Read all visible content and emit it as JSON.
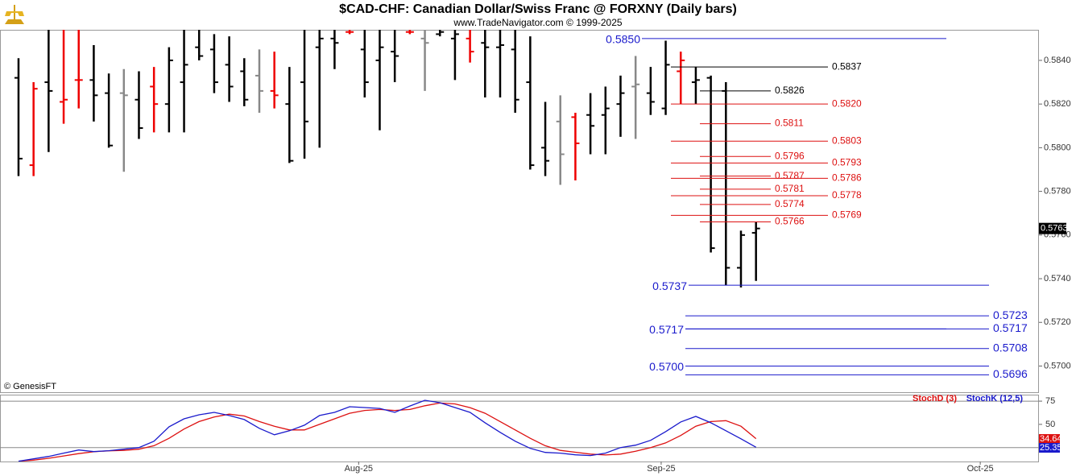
{
  "chart_data": [
    {
      "type": "ohlc",
      "title": "$CAD-CHF:  Canadian Dollar/Swiss Franc @ FORXNY  (Daily bars)",
      "subtitle": "www.TradeNavigator.com © 1999-2025",
      "credit": "© GenesisFT",
      "categories": [
        null,
        null,
        null,
        null,
        null,
        null,
        null,
        null,
        null,
        null,
        null,
        null,
        null,
        null,
        null,
        null,
        null,
        null,
        null,
        null,
        null,
        null,
        null,
        null,
        null,
        null,
        null,
        null,
        null,
        null,
        null,
        null,
        null,
        null,
        null,
        null,
        null,
        null,
        null,
        null,
        null,
        null,
        null,
        null,
        null,
        null,
        null,
        null,
        null,
        null
      ],
      "xlim": [
        -1.23,
        67.8
      ],
      "ylim": [
        0.5688,
        0.5854
      ],
      "yticks": [
        {
          "value": 0.584,
          "label": "0.5840"
        },
        {
          "value": 0.582,
          "label": "0.5820"
        },
        {
          "value": 0.58,
          "label": "0.5800"
        },
        {
          "value": 0.578,
          "label": "0.5780"
        },
        {
          "value": 0.576,
          "label": "0.5760"
        },
        {
          "value": 0.574,
          "label": "0.5740"
        },
        {
          "value": 0.572,
          "label": "0.5720"
        },
        {
          "value": 0.57,
          "label": "0.5700"
        }
      ],
      "open": [
        0.5832,
        0.5792,
        0.583,
        0.5821,
        0.5831,
        0.5831,
        0.5825,
        0.5825,
        0.5822,
        0.5828,
        0.582,
        0.583,
        0.5846,
        0.5845,
        0.5838,
        0.5835,
        0.5833,
        0.5826,
        0.582,
        0.583,
        0.5846,
        0.585,
        0.5853,
        0.5845,
        0.584,
        0.5844,
        0.5853,
        0.585,
        0.5852,
        0.585,
        0.585,
        0.5848,
        0.5846,
        0.5845,
        0.583,
        0.58,
        0.5812,
        0.5814,
        0.5815,
        0.5815,
        0.582,
        0.5828,
        0.5825,
        0.5818,
        0.5835,
        0.583,
        0.5832,
        0.5826,
        0.5745,
        0.5761
      ],
      "high": [
        0.5841,
        0.583,
        0.5854,
        0.5854,
        0.5854,
        0.5847,
        0.5834,
        0.5836,
        0.5835,
        0.5837,
        0.5846,
        0.5854,
        0.5854,
        0.5852,
        0.5851,
        0.5841,
        0.5845,
        0.5844,
        0.5837,
        0.5854,
        0.5854,
        0.5854,
        0.5854,
        0.5854,
        0.5854,
        0.5854,
        0.5854,
        0.5854,
        0.5854,
        0.5854,
        0.5854,
        0.5854,
        0.5854,
        0.5854,
        0.5851,
        0.5821,
        0.5824,
        0.5816,
        0.5825,
        0.5828,
        0.5833,
        0.5842,
        0.5837,
        0.5849,
        0.5844,
        0.5837,
        0.5833,
        0.583,
        0.5762,
        0.5766
      ],
      "low": [
        0.5787,
        0.5787,
        0.5798,
        0.5811,
        0.5818,
        0.5812,
        0.58,
        0.5789,
        0.5804,
        0.5807,
        0.5807,
        0.5807,
        0.584,
        0.5825,
        0.5821,
        0.5819,
        0.5816,
        0.5818,
        0.5793,
        0.5795,
        0.58,
        0.5836,
        0.5852,
        0.5823,
        0.5808,
        0.583,
        0.5852,
        0.5826,
        0.5851,
        0.5831,
        0.5839,
        0.5823,
        0.5823,
        0.5816,
        0.579,
        0.5787,
        0.5783,
        0.5785,
        0.5797,
        0.5797,
        0.5805,
        0.5804,
        0.5815,
        0.5815,
        0.582,
        0.582,
        0.5752,
        0.5737,
        0.5736,
        0.5739
      ],
      "close": [
        0.5795,
        0.5827,
        0.5826,
        0.5822,
        0.5831,
        0.5824,
        0.5801,
        0.5824,
        0.5809,
        0.582,
        0.584,
        0.5838,
        0.5842,
        0.583,
        0.5828,
        0.5822,
        0.5826,
        0.5824,
        0.5794,
        0.5812,
        0.585,
        0.5848,
        0.5853,
        0.583,
        0.5846,
        0.5842,
        0.5853,
        0.5848,
        0.5853,
        0.5852,
        0.5844,
        0.5846,
        0.5847,
        0.5822,
        0.5792,
        0.5794,
        0.5797,
        0.5802,
        0.581,
        0.5818,
        0.5825,
        0.5829,
        0.5821,
        0.5838,
        0.584,
        0.5831,
        0.5754,
        0.5745,
        0.576,
        0.5763
      ],
      "colors": [
        "#000",
        "#e00",
        "#000",
        "#e00",
        "#e00",
        "#000",
        "#000",
        "#888",
        "#000",
        "#e00",
        "#000",
        "#000",
        "#000",
        "#000",
        "#000",
        "#000",
        "#888",
        "#e00",
        "#000",
        "#000",
        "#000",
        "#000",
        "#e00",
        "#000",
        "#000",
        "#000",
        "#e00",
        "#888",
        "#000",
        "#000",
        "#e00",
        "#000",
        "#000",
        "#000",
        "#000",
        "#000",
        "#888",
        "#e00",
        "#000",
        "#000",
        "#000",
        "#888",
        "#000",
        "#000",
        "#e00",
        "#000",
        "#000",
        "#000",
        "#000",
        "#000"
      ],
      "last": {
        "value": 0.5763,
        "label": "0.5763"
      },
      "levels": [
        {
          "value": 0.585,
          "label": "0.5850",
          "color": "#1a1acc"
        },
        {
          "value": 0.5837,
          "label": "0.5837",
          "color": "#000000"
        },
        {
          "value": 0.5826,
          "label": "0.5826",
          "color": "#000000"
        },
        {
          "value": 0.582,
          "label": "0.5820",
          "color": "#dd1111"
        },
        {
          "value": 0.5811,
          "label": "0.5811",
          "color": "#dd1111"
        },
        {
          "value": 0.5803,
          "label": "0.5803",
          "color": "#dd1111"
        },
        {
          "value": 0.5796,
          "label": "0.5796",
          "color": "#dd1111"
        },
        {
          "value": 0.5793,
          "label": "0.5793",
          "color": "#dd1111"
        },
        {
          "value": 0.5787,
          "label": "0.5787",
          "color": "#dd1111"
        },
        {
          "value": 0.5786,
          "label": "0.5786",
          "color": "#dd1111"
        },
        {
          "value": 0.5781,
          "label": "0.5781",
          "color": "#dd1111"
        },
        {
          "value": 0.5778,
          "label": "0.5778",
          "color": "#dd1111"
        },
        {
          "value": 0.5774,
          "label": "0.5774",
          "color": "#dd1111"
        },
        {
          "value": 0.5769,
          "label": "0.5769",
          "color": "#dd1111"
        },
        {
          "value": 0.5766,
          "label": "0.5766",
          "color": "#dd1111"
        },
        {
          "value": 0.5737,
          "label": "0.5737",
          "color": "#1a1acc"
        },
        {
          "value": 0.5723,
          "label": "0.5723",
          "color": "#1a1acc"
        },
        {
          "value": 0.5717,
          "label": "0.5717",
          "color": "#1a1acc"
        },
        {
          "value": 0.5717,
          "label": "0.5717",
          "color": "#1a1acc"
        },
        {
          "value": 0.5708,
          "label": "0.5708",
          "color": "#1a1acc"
        },
        {
          "value": 0.57,
          "label": "0.5700",
          "color": "#1a1acc"
        },
        {
          "value": 0.5696,
          "label": "0.5696",
          "color": "#1a1acc"
        }
      ]
    },
    {
      "type": "line",
      "xlim": [
        -1.23,
        67.8
      ],
      "ylim": [
        10,
        82
      ],
      "yticks": [
        75,
        50,
        25
      ],
      "xticks": [
        {
          "value": 22.6,
          "label": "Aug-25"
        },
        {
          "value": 42.7,
          "label": "Sep-25"
        },
        {
          "value": 63.9,
          "label": "Oct-25"
        }
      ],
      "series": [
        {
          "name": "StochD (3)",
          "color": "#dd1111",
          "values": [
            10.3,
            11.5,
            13.5,
            16,
            18.5,
            20.5,
            21.5,
            22,
            23.3,
            27,
            35,
            45,
            53,
            58,
            61,
            59,
            53,
            48,
            44,
            44,
            50,
            56,
            62,
            65,
            66,
            65,
            66,
            70,
            73,
            72,
            68,
            62,
            53,
            44,
            35,
            27,
            22,
            20,
            18,
            17,
            18,
            21,
            25,
            30,
            38,
            48,
            53,
            54,
            48,
            34.64
          ],
          "last": {
            "value": 34.64,
            "label": "34.64"
          }
        },
        {
          "name": "StochK (12,5)",
          "color": "#1a1acc",
          "values": [
            10.3,
            12.9,
            15.5,
            19.0,
            22.4,
            20.7,
            21.6,
            23.3,
            25.0,
            31.9,
            47.4,
            56.0,
            60.3,
            62.9,
            59.5,
            55.2,
            45.7,
            38.8,
            43.1,
            49.1,
            59.5,
            62.9,
            69.0,
            68.1,
            67.2,
            62.9,
            69.8,
            75.9,
            73.3,
            68.1,
            62.9,
            51.7,
            41.4,
            31.9,
            24.1,
            19.8,
            19.0,
            17.2,
            16.4,
            19.0,
            25.0,
            27.6,
            32.8,
            42.2,
            52.6,
            58.6,
            51.7,
            43.1,
            34.5,
            25.35
          ],
          "last": {
            "value": 25.35,
            "label": "25.35"
          }
        }
      ]
    }
  ]
}
